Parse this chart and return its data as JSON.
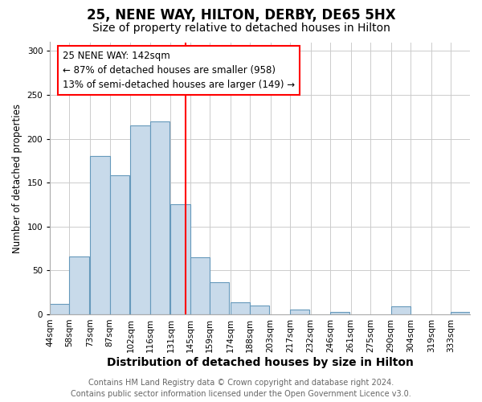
{
  "title": "25, NENE WAY, HILTON, DERBY, DE65 5HX",
  "subtitle": "Size of property relative to detached houses in Hilton",
  "xlabel": "Distribution of detached houses by size in Hilton",
  "ylabel": "Number of detached properties",
  "bin_labels": [
    "44sqm",
    "58sqm",
    "73sqm",
    "87sqm",
    "102sqm",
    "116sqm",
    "131sqm",
    "145sqm",
    "159sqm",
    "174sqm",
    "188sqm",
    "203sqm",
    "217sqm",
    "232sqm",
    "246sqm",
    "261sqm",
    "275sqm",
    "290sqm",
    "304sqm",
    "319sqm",
    "333sqm"
  ],
  "bar_values": [
    12,
    66,
    180,
    158,
    215,
    220,
    125,
    65,
    37,
    14,
    10,
    0,
    5,
    0,
    3,
    0,
    0,
    9,
    0,
    0,
    3
  ],
  "bar_left_edges": [
    44,
    58,
    73,
    87,
    102,
    116,
    131,
    145,
    159,
    174,
    188,
    203,
    217,
    232,
    246,
    261,
    275,
    290,
    304,
    319,
    333
  ],
  "bin_width": 14,
  "bar_color": "#c8daea",
  "bar_edge_color": "#6699bb",
  "vline_x": 142,
  "vline_color": "red",
  "ylim": [
    0,
    310
  ],
  "yticks": [
    0,
    50,
    100,
    150,
    200,
    250,
    300
  ],
  "annotation_title": "25 NENE WAY: 142sqm",
  "annotation_line1": "← 87% of detached houses are smaller (958)",
  "annotation_line2": "13% of semi-detached houses are larger (149) →",
  "footer_line1": "Contains HM Land Registry data © Crown copyright and database right 2024.",
  "footer_line2": "Contains public sector information licensed under the Open Government Licence v3.0.",
  "background_color": "#ffffff",
  "plot_background": "#ffffff",
  "title_fontsize": 12,
  "subtitle_fontsize": 10,
  "xlabel_fontsize": 10,
  "ylabel_fontsize": 8.5,
  "tick_fontsize": 7.5,
  "footer_fontsize": 7,
  "annotation_fontsize": 8.5
}
